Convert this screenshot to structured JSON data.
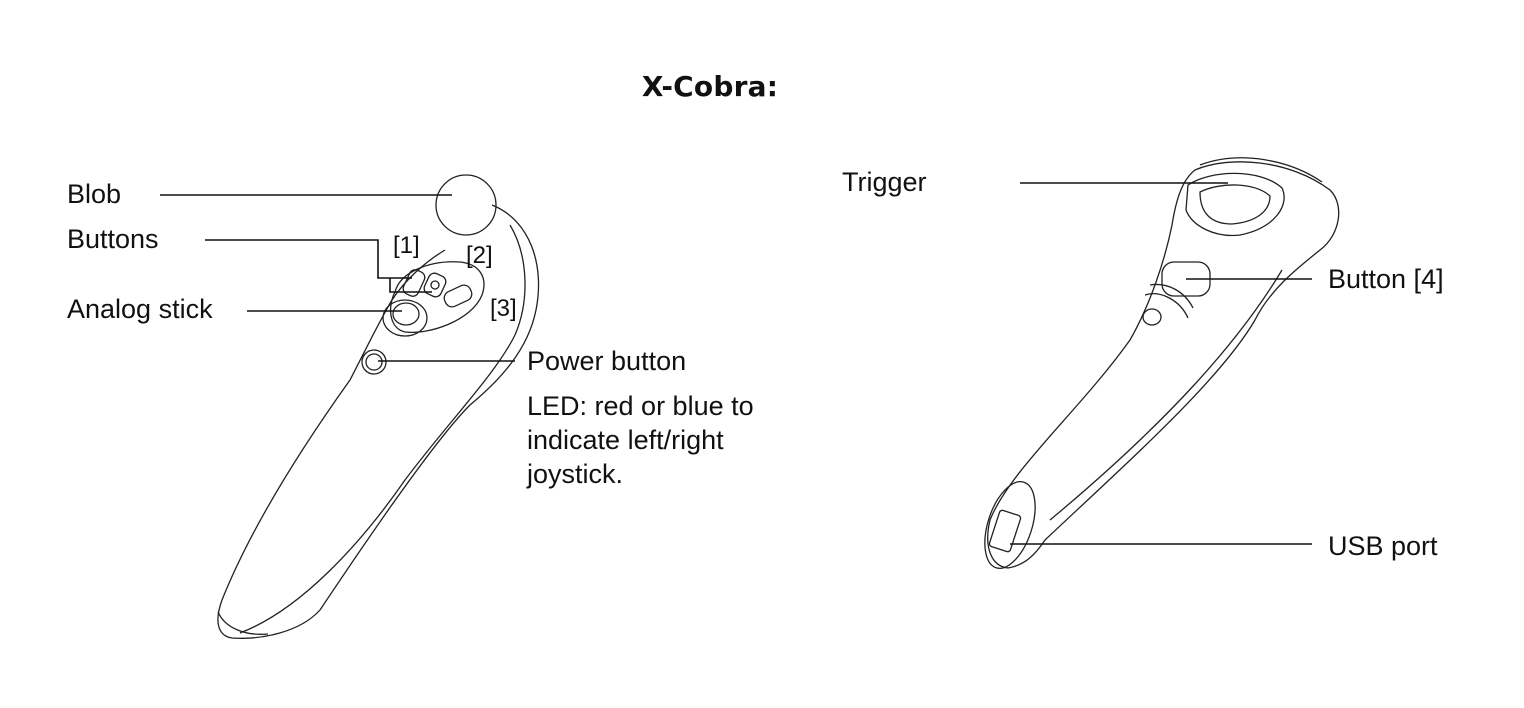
{
  "title": "X-Cobra:",
  "left_controller": {
    "labels": {
      "blob": "Blob",
      "buttons": "Buttons",
      "analog_stick": "Analog stick",
      "power_button": "Power button",
      "button_1": "[1]",
      "button_2": "[2]",
      "button_3": "[3]"
    },
    "led_note": {
      "line1": "LED: red or blue to",
      "line2": "indicate left/right",
      "line3": "joystick."
    }
  },
  "right_controller": {
    "labels": {
      "trigger": "Trigger",
      "button_4": "Button [4]",
      "usb_port": "USB port"
    }
  }
}
